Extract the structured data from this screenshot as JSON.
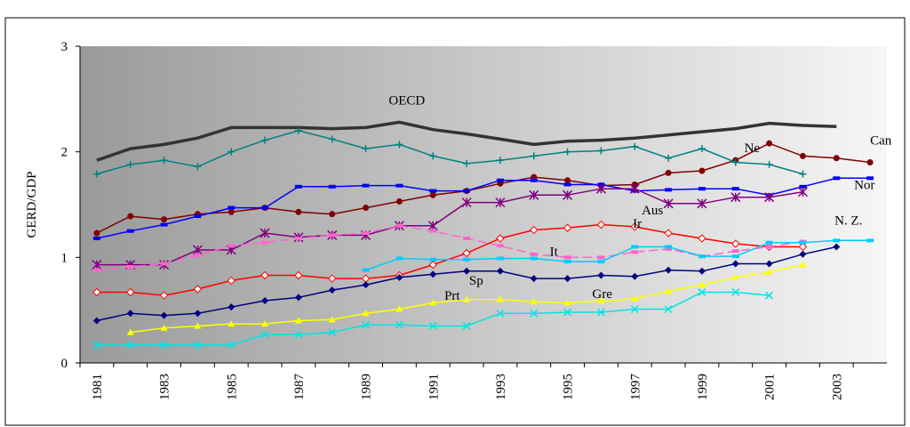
{
  "chart_data": {
    "type": "line",
    "y_label": "GERD/GDP",
    "categories": [
      "1981",
      null,
      "1983",
      null,
      "1985",
      null,
      "1987",
      null,
      "1989",
      null,
      "1991",
      null,
      "1993",
      null,
      "1995",
      null,
      "1997",
      null,
      "1999",
      null,
      "2001",
      null,
      "2003",
      null
    ],
    "ylim": [
      0,
      3
    ],
    "yticks": [
      0,
      1,
      2,
      3
    ],
    "series": [
      {
        "name": "OECD",
        "color": "#333333",
        "marker": "none",
        "width": 3.5,
        "values": [
          1.92,
          2.03,
          2.07,
          2.13,
          2.23,
          2.23,
          2.23,
          2.22,
          2.23,
          2.28,
          2.21,
          2.17,
          2.12,
          2.07,
          2.1,
          2.11,
          2.13,
          2.16,
          2.19,
          2.22,
          2.27,
          2.25,
          2.24,
          null
        ]
      },
      {
        "name": "Can",
        "color": "#800000",
        "marker": "circle",
        "width": 1.5,
        "values": [
          1.23,
          1.39,
          1.36,
          1.41,
          1.43,
          1.47,
          1.43,
          1.41,
          1.47,
          1.53,
          1.59,
          1.63,
          1.7,
          1.76,
          1.73,
          1.68,
          1.69,
          1.8,
          1.82,
          1.92,
          2.08,
          1.96,
          1.94,
          1.9
        ]
      },
      {
        "name": "Ne",
        "color": "#008080",
        "marker": "plus",
        "width": 1.5,
        "values": [
          1.79,
          1.88,
          1.92,
          1.86,
          2.0,
          2.11,
          2.2,
          2.12,
          2.03,
          2.07,
          1.96,
          1.89,
          1.92,
          1.96,
          2.0,
          2.01,
          2.05,
          1.94,
          2.03,
          1.9,
          1.88,
          1.79,
          null,
          null
        ]
      },
      {
        "name": "Nor",
        "color": "#0000ff",
        "marker": "dash",
        "width": 1.5,
        "values": [
          1.18,
          1.25,
          1.31,
          1.39,
          1.47,
          1.47,
          1.67,
          1.67,
          1.68,
          1.68,
          1.63,
          1.63,
          1.73,
          1.73,
          1.69,
          1.69,
          1.63,
          1.64,
          1.65,
          1.65,
          1.59,
          1.67,
          1.75,
          1.75
        ]
      },
      {
        "name": "Aus",
        "color": "#800080",
        "marker": "asterisk",
        "width": 1.5,
        "values": [
          0.93,
          0.93,
          0.93,
          1.07,
          1.07,
          1.23,
          1.19,
          1.21,
          1.21,
          1.3,
          1.3,
          1.52,
          1.52,
          1.59,
          1.59,
          1.65,
          1.65,
          1.51,
          1.51,
          1.57,
          1.57,
          1.62,
          null,
          null
        ]
      },
      {
        "name": "Ir",
        "color": "#ff0000",
        "marker": "diamond-open",
        "width": 1.5,
        "values": [
          0.67,
          0.67,
          0.64,
          0.7,
          0.78,
          0.83,
          0.83,
          0.8,
          0.8,
          0.83,
          0.93,
          1.04,
          1.18,
          1.26,
          1.28,
          1.31,
          1.29,
          1.23,
          1.18,
          1.13,
          1.1,
          1.1,
          null,
          null
        ]
      },
      {
        "name": "It",
        "color": "#ff66cc",
        "marker": "dash",
        "width": 1.5,
        "dashed": true,
        "values": [
          0.88,
          0.91,
          0.94,
          1.02,
          1.11,
          1.14,
          1.18,
          1.21,
          1.23,
          1.3,
          1.25,
          1.18,
          1.11,
          1.03,
          1.0,
          1.0,
          1.05,
          1.08,
          1.01,
          1.06,
          1.1,
          1.15,
          null,
          null
        ]
      },
      {
        "name": "N. Z.",
        "color": "#00ccff",
        "marker": "dash",
        "width": 1.5,
        "values": [
          null,
          null,
          null,
          null,
          null,
          null,
          null,
          null,
          0.88,
          0.99,
          0.98,
          0.98,
          0.99,
          0.99,
          0.96,
          0.96,
          1.1,
          1.1,
          1.01,
          1.01,
          1.14,
          1.14,
          1.16,
          1.16
        ]
      },
      {
        "name": "Sp",
        "color": "#000080",
        "marker": "diamond",
        "width": 1.5,
        "values": [
          0.4,
          0.47,
          0.45,
          0.47,
          0.53,
          0.59,
          0.62,
          0.69,
          0.74,
          0.81,
          0.84,
          0.87,
          0.87,
          0.8,
          0.8,
          0.83,
          0.82,
          0.88,
          0.87,
          0.94,
          0.94,
          1.03,
          1.1,
          null
        ]
      },
      {
        "name": "Prt",
        "color": "#ffff00",
        "marker": "triangle",
        "width": 1.5,
        "values": [
          null,
          0.29,
          0.33,
          0.35,
          0.37,
          0.37,
          0.4,
          0.41,
          0.47,
          0.51,
          0.57,
          0.6,
          0.6,
          0.58,
          0.57,
          0.59,
          0.61,
          0.68,
          0.74,
          0.81,
          0.86,
          0.93,
          null,
          null
        ]
      },
      {
        "name": "Gre",
        "color": "#00e5e5",
        "marker": "x",
        "width": 1.5,
        "values": [
          0.17,
          0.17,
          0.17,
          0.17,
          0.17,
          0.27,
          0.27,
          0.29,
          0.36,
          0.36,
          0.35,
          0.35,
          0.47,
          0.47,
          0.48,
          0.48,
          0.51,
          0.51,
          0.67,
          0.67,
          0.64,
          null,
          null,
          null
        ]
      }
    ]
  }
}
